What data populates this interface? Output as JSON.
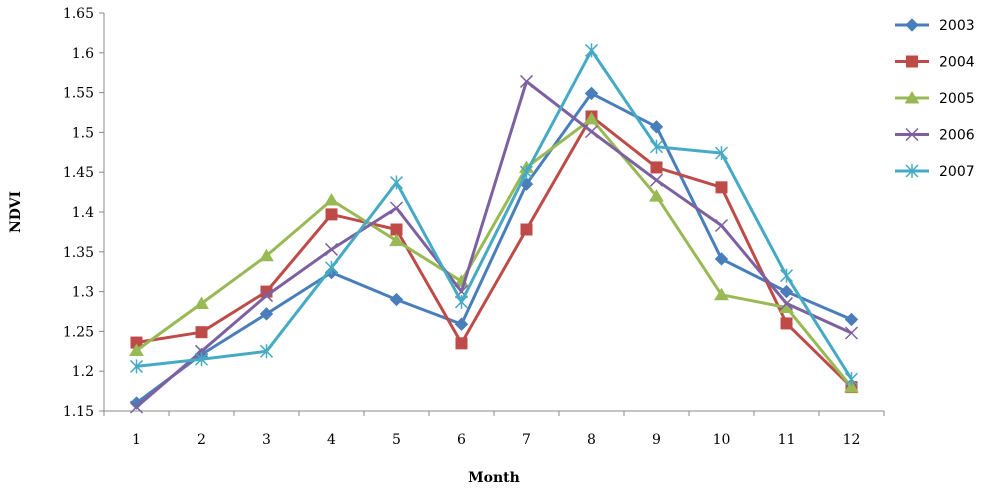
{
  "chart_data": {
    "type": "line",
    "title": "",
    "xlabel": "Month",
    "ylabel": "NDVI",
    "x": [
      1,
      2,
      3,
      4,
      5,
      6,
      7,
      8,
      9,
      10,
      11,
      12
    ],
    "x_tick_labels": [
      "1",
      "2",
      "3",
      "4",
      "5",
      "6",
      "7",
      "8",
      "9",
      "10",
      "11",
      "12"
    ],
    "ylim": [
      1.15,
      1.65
    ],
    "y_ticks": [
      1.15,
      1.2,
      1.25,
      1.3,
      1.35,
      1.4,
      1.45,
      1.5,
      1.55,
      1.6,
      1.65
    ],
    "y_tick_labels": [
      "1.15",
      "1.2",
      "1.25",
      "1.3",
      "1.35",
      "1.4",
      "1.45",
      "1.5",
      "1.55",
      "1.6",
      "1.65"
    ],
    "grid": false,
    "legend_position": "top-right",
    "series": [
      {
        "name": "2003",
        "color": "#4a7ebb",
        "marker": "diamond",
        "values": [
          1.16,
          1.221,
          1.272,
          1.324,
          1.29,
          1.259,
          1.435,
          1.549,
          1.507,
          1.341,
          1.3,
          1.265
        ]
      },
      {
        "name": "2004",
        "color": "#be4b48",
        "marker": "square",
        "values": [
          1.236,
          1.249,
          1.3,
          1.397,
          1.378,
          1.235,
          1.378,
          1.52,
          1.456,
          1.431,
          1.26,
          1.18
        ]
      },
      {
        "name": "2005",
        "color": "#98b954",
        "marker": "triangle",
        "values": [
          1.226,
          1.285,
          1.345,
          1.415,
          1.364,
          1.313,
          1.456,
          1.517,
          1.42,
          1.296,
          1.28,
          1.18
        ]
      },
      {
        "name": "2006",
        "color": "#7d60a0",
        "marker": "x",
        "values": [
          1.155,
          1.225,
          1.295,
          1.353,
          1.405,
          1.3,
          1.564,
          1.501,
          1.44,
          1.383,
          1.285,
          1.248
        ]
      },
      {
        "name": "2007",
        "color": "#46aac5",
        "marker": "star",
        "values": [
          1.206,
          1.215,
          1.225,
          1.33,
          1.437,
          1.287,
          1.45,
          1.603,
          1.482,
          1.474,
          1.32,
          1.19
        ]
      }
    ]
  }
}
